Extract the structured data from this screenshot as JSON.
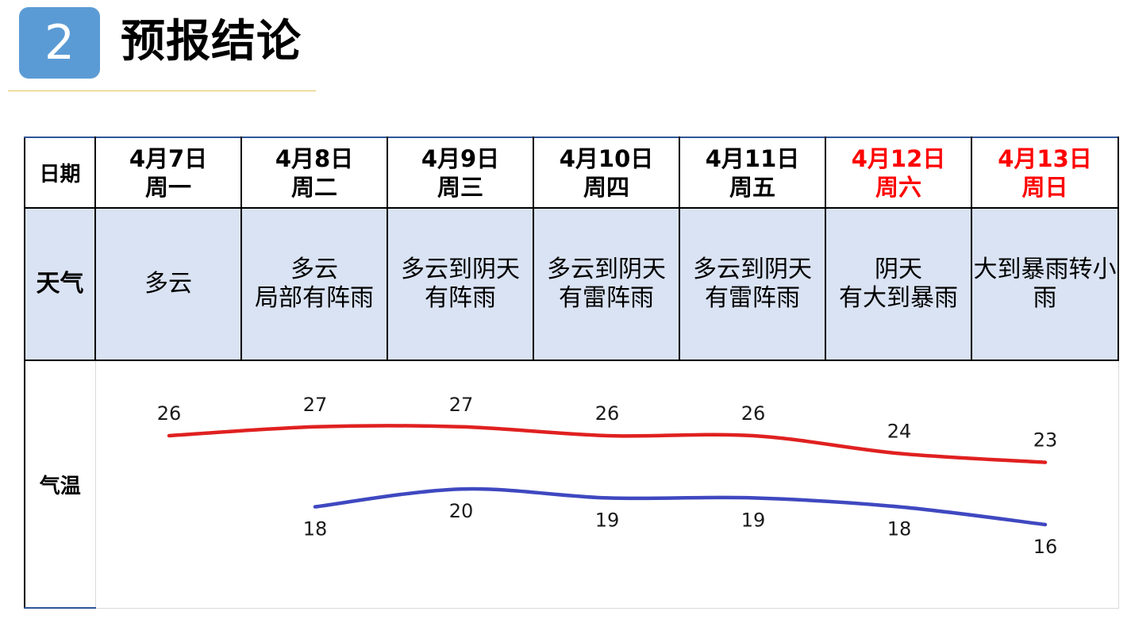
{
  "header": {
    "badge": "2",
    "title": "预报结论"
  },
  "labels": {
    "date": "日期",
    "weather": "天气",
    "temperature": "气温"
  },
  "days": [
    {
      "date": "4月7日",
      "weekday": "周一",
      "weekend": false,
      "weather": [
        "多云"
      ]
    },
    {
      "date": "4月8日",
      "weekday": "周二",
      "weekend": false,
      "weather": [
        "多云",
        "局部有阵雨"
      ]
    },
    {
      "date": "4月9日",
      "weekday": "周三",
      "weekend": false,
      "weather": [
        "多云到阴天",
        "有阵雨"
      ]
    },
    {
      "date": "4月10日",
      "weekday": "周四",
      "weekend": false,
      "weather": [
        "多云到阴天",
        "有雷阵雨"
      ]
    },
    {
      "date": "4月11日",
      "weekday": "周五",
      "weekend": false,
      "weather": [
        "多云到阴天",
        "有雷阵雨"
      ]
    },
    {
      "date": "4月12日",
      "weekday": "周六",
      "weekend": true,
      "weather": [
        "阴天",
        "有大到暴雨"
      ]
    },
    {
      "date": "4月13日",
      "weekday": "周日",
      "weekend": true,
      "weather": [
        "大到暴雨转小",
        "雨"
      ]
    }
  ],
  "colors": {
    "high": "#e02020",
    "low": "#3f48c0",
    "weekend_text": "#ff0000",
    "accent": "#5b9bd5"
  },
  "chart_data": {
    "type": "line",
    "categories": [
      "4月7日",
      "4月8日",
      "4月9日",
      "4月10日",
      "4月11日",
      "4月12日",
      "4月13日"
    ],
    "series": [
      {
        "values": [
          26,
          27,
          27,
          26,
          26,
          24,
          23
        ]
      },
      {
        "values": [
          null,
          18,
          20,
          19,
          19,
          18,
          16
        ]
      }
    ],
    "ylim": [
      14,
      29
    ],
    "grid": false,
    "legend": "none"
  }
}
